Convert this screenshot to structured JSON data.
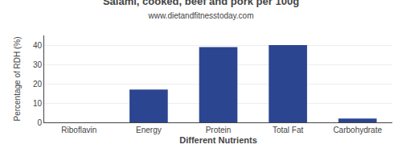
{
  "chart_data": {
    "type": "bar",
    "title": "Salami, cooked, beef and pork per 100g",
    "subtitle": "www.dietandfitnesstoday.com",
    "xlabel": "Different Nutrients",
    "ylabel": "Percentage of RDH (%)",
    "categories": [
      "Riboflavin",
      "Energy",
      "Protein",
      "Total Fat",
      "Carbohydrate"
    ],
    "values": [
      0,
      17,
      39,
      40,
      2
    ],
    "color": "#2b4590",
    "ylim": [
      0,
      45
    ],
    "yticks": [
      0,
      10,
      20,
      30,
      40
    ],
    "grid": true
  }
}
